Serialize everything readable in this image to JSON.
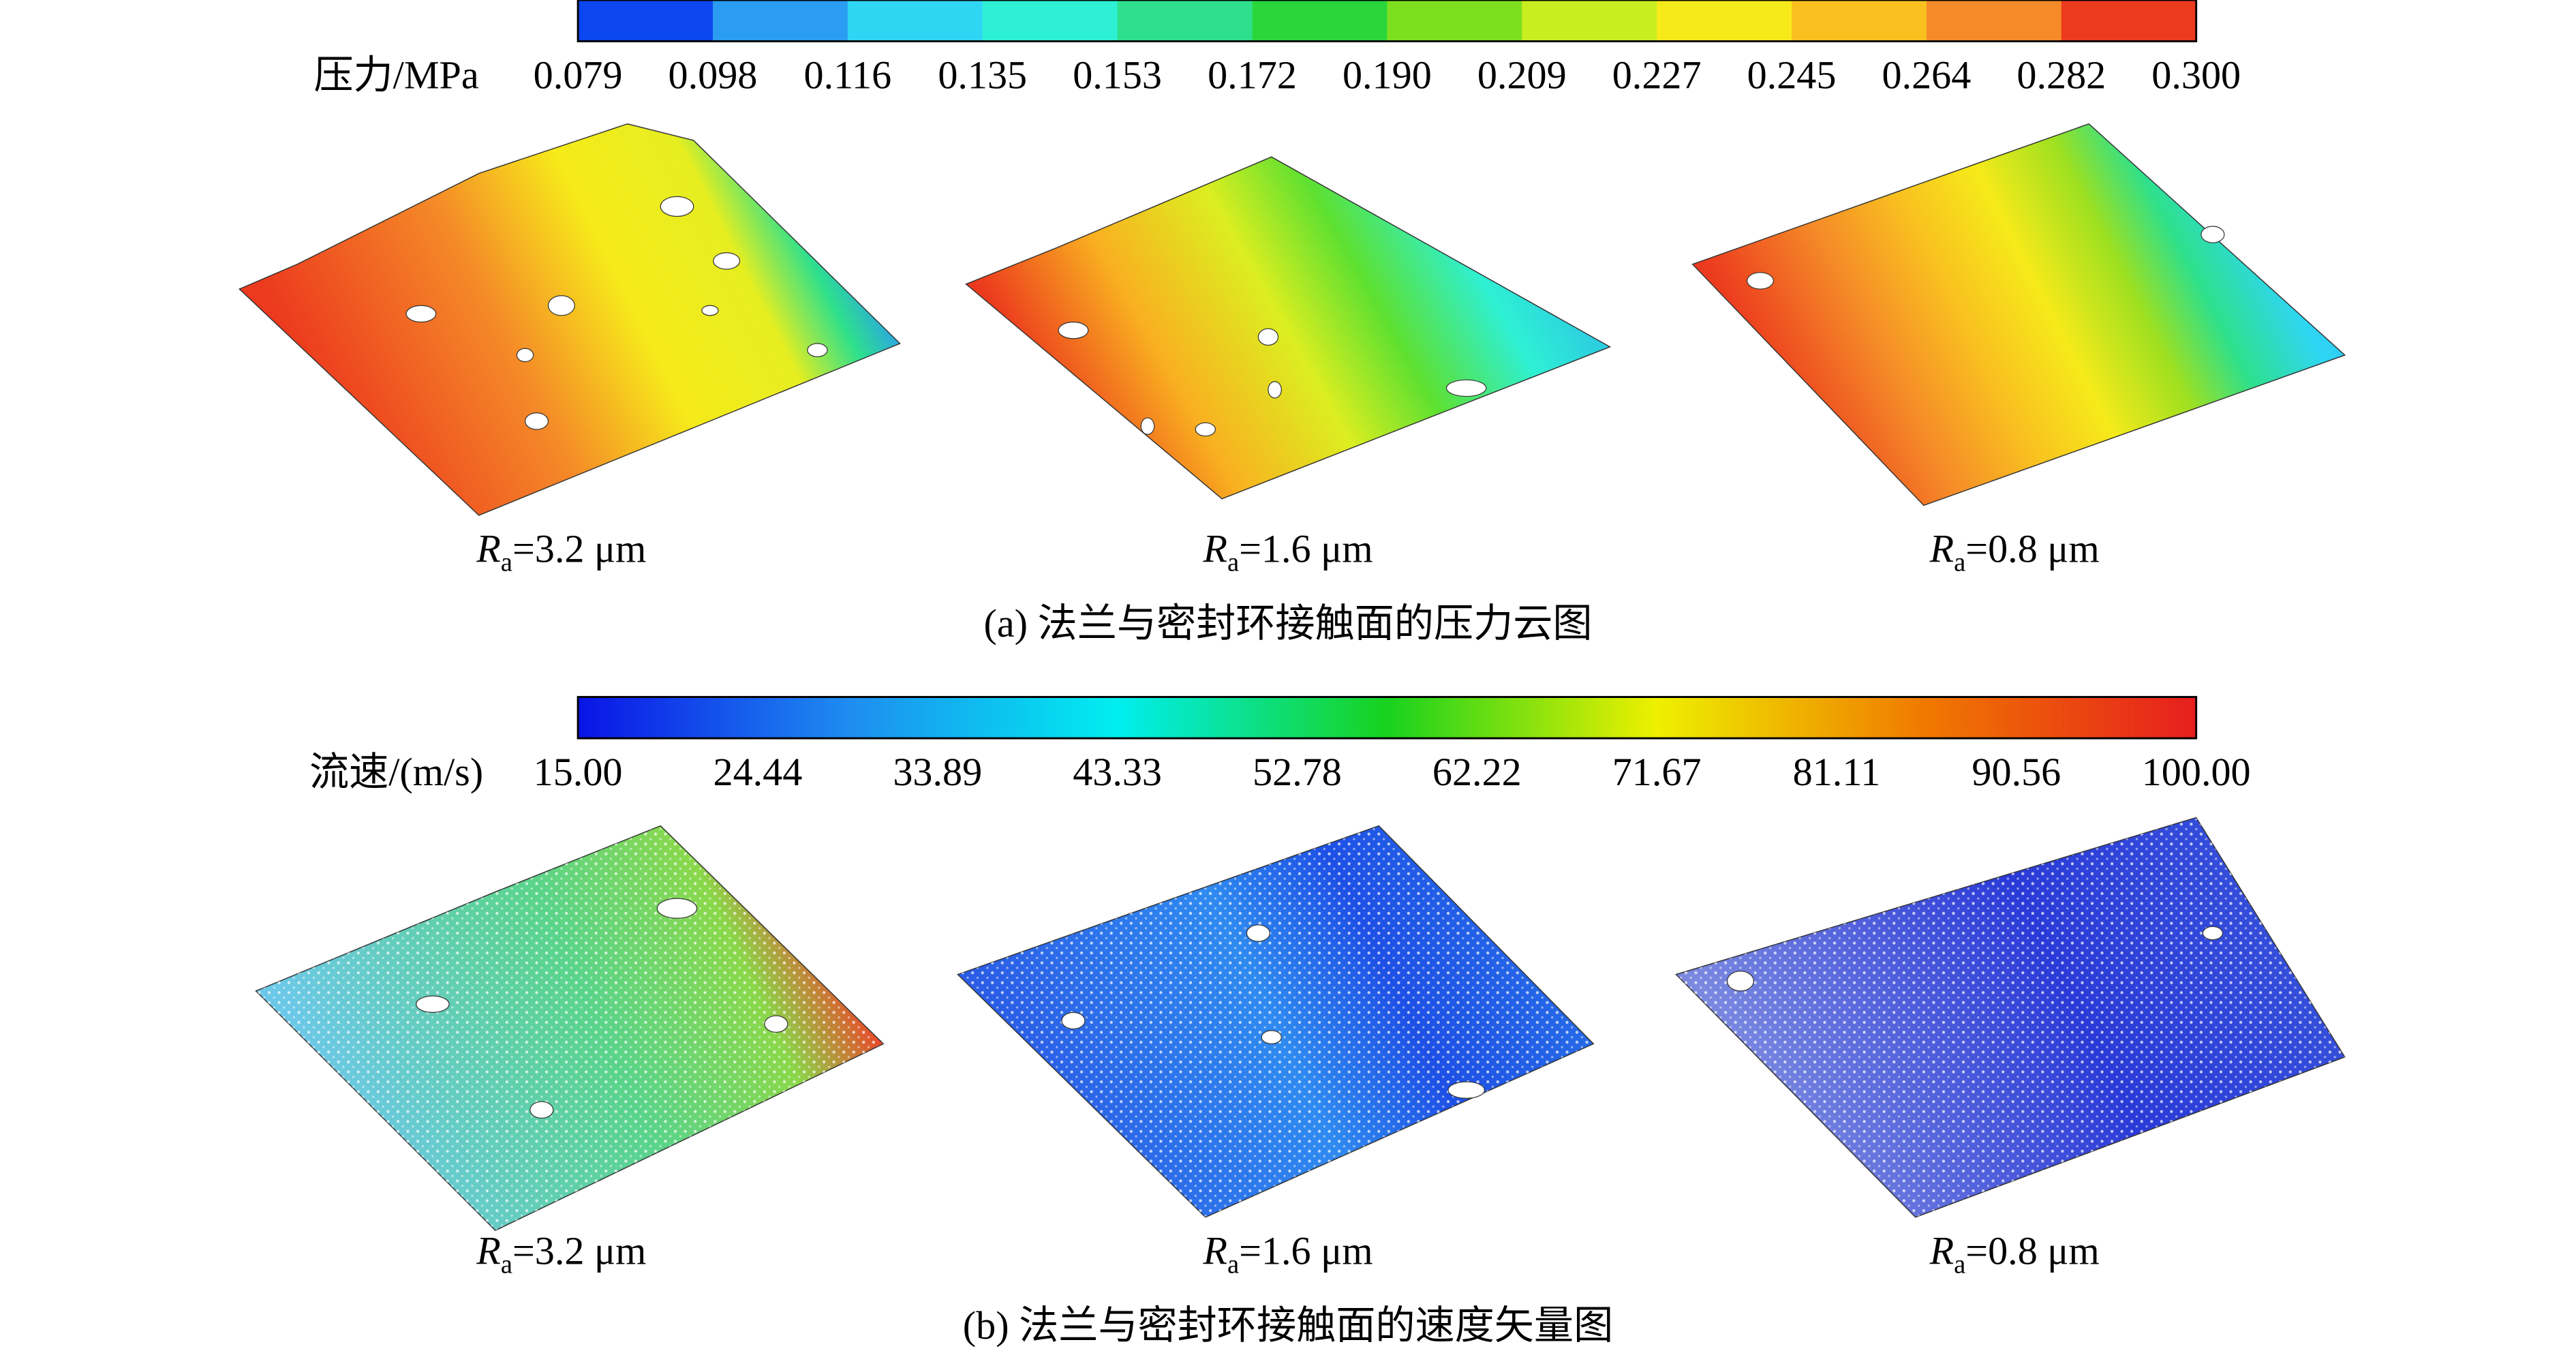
{
  "panels": [
    {
      "colorbar": {
        "label": "压力/MPa",
        "ticks": [
          "0.079",
          "0.098",
          "0.116",
          "0.135",
          "0.153",
          "0.172",
          "0.190",
          "0.209",
          "0.227",
          "0.245",
          "0.264",
          "0.282",
          "0.300"
        ],
        "colors": [
          "#0b46ee",
          "#2a9cf2",
          "#2fd6f4",
          "#2ef0d4",
          "#2ee08c",
          "#2ad63c",
          "#7ce020",
          "#c8ee20",
          "#f6ea1a",
          "#f9c020",
          "#f58a28",
          "#ec3a1e"
        ]
      },
      "surfaces": [
        {
          "symbol": "R",
          "subscript": "a",
          "text": "=3.2 μm"
        },
        {
          "symbol": "R",
          "subscript": "a",
          "text": "=1.6 μm"
        },
        {
          "symbol": "R",
          "subscript": "a",
          "text": "=0.8 μm"
        }
      ],
      "caption": "(a) 法兰与密封环接触面的压力云图"
    },
    {
      "colorbar": {
        "label": "流速/(m/s)",
        "ticks": [
          "15.00",
          "24.44",
          "33.89",
          "43.33",
          "52.78",
          "62.22",
          "71.67",
          "81.11",
          "90.56",
          "100.00"
        ],
        "colors": [
          "#0a14e6",
          "#1e8cf0",
          "#00eef0",
          "#18d21e",
          "#eef000",
          "#f07800",
          "#e61e1e"
        ]
      },
      "surfaces": [
        {
          "symbol": "R",
          "subscript": "a",
          "text": "=3.2 μm"
        },
        {
          "symbol": "R",
          "subscript": "a",
          "text": "=1.6 μm"
        },
        {
          "symbol": "R",
          "subscript": "a",
          "text": "=0.8 μm"
        }
      ],
      "caption": "(b) 法兰与密封环接触面的速度矢量图"
    }
  ]
}
